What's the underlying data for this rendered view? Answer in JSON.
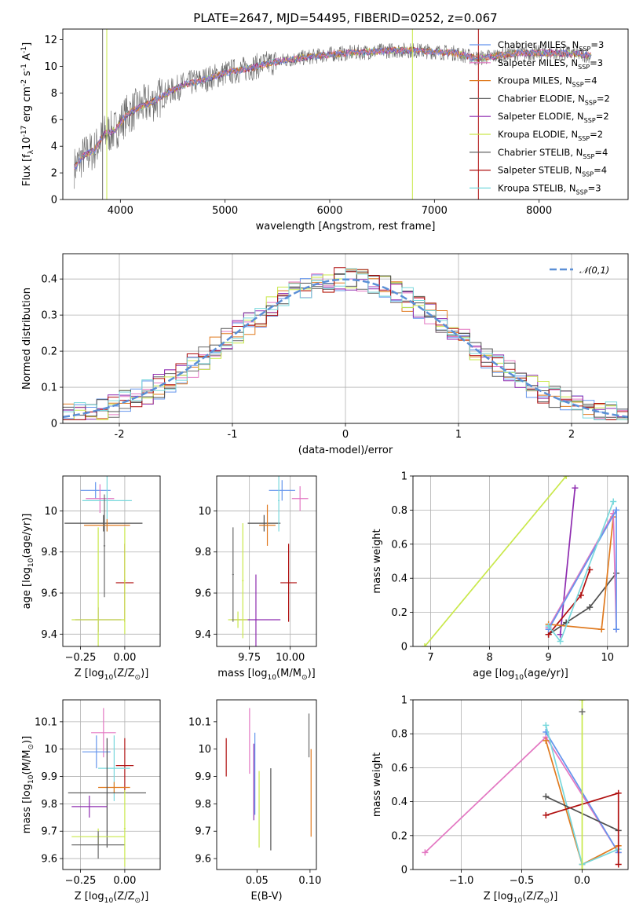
{
  "figure": {
    "title": "PLATE=2647, MJD=54495, FIBERID=0252, z=0.067"
  },
  "colors": {
    "Chabrier MILES": "#6495ed",
    "Salpeter MILES": "#e377c2",
    "Kroupa MILES": "#e07a1f",
    "Chabrier ELODIE": "#6a6a6a",
    "Salpeter ELODIE": "#8e2cb0",
    "Kroupa ELODIE": "#c9e84a",
    "Chabrier STELIB": "#505050",
    "Salpeter STELIB": "#b01010",
    "Kroupa STELIB": "#78d8dc",
    "gauss": "#5b8fd6"
  },
  "chart_data": [
    {
      "id": "spectrum",
      "type": "line",
      "title": "PLATE=2647, MJD=54495, FIBERID=0252, z=0.067",
      "xlabel": "wavelength [Angstrom, rest frame]",
      "ylabel": "Flux [f$_\\lambda$10$^{-17}$ erg cm$^{-2}$ s$^{-1}$ A$^{-1}$]",
      "xlim": [
        3450,
        8850
      ],
      "ylim": [
        0,
        12.8
      ],
      "xticks": [
        4000,
        5000,
        6000,
        7000,
        8000
      ],
      "yticks": [
        0,
        2,
        4,
        6,
        8,
        10,
        12
      ],
      "grid": false,
      "legend_position": "right",
      "legend": [
        "Chabrier MILES, N$_{SSP}$=3",
        "Salpeter MILES, N$_{SSP}$=3",
        "Kroupa MILES, N$_{SSP}$=4",
        "Chabrier ELODIE, N$_{SSP}$=2",
        "Salpeter ELODIE, N$_{SSP}$=2",
        "Kroupa ELODIE, N$_{SSP}$=2",
        "Chabrier STELIB, N$_{SSP}$=4",
        "Salpeter STELIB, N$_{SSP}$=4",
        "Kroupa STELIB, N$_{SSP}$=3"
      ],
      "continuum": [
        [
          3560,
          2.4
        ],
        [
          3650,
          3.3
        ],
        [
          3750,
          3.7
        ],
        [
          3850,
          4.9
        ],
        [
          3950,
          5.2
        ],
        [
          4050,
          6.3
        ],
        [
          4150,
          6.8
        ],
        [
          4300,
          7.3
        ],
        [
          4450,
          8.0
        ],
        [
          4600,
          8.6
        ],
        [
          4800,
          9.0
        ],
        [
          5000,
          9.5
        ],
        [
          5200,
          9.8
        ],
        [
          5400,
          10.2
        ],
        [
          5600,
          10.5
        ],
        [
          5800,
          10.7
        ],
        [
          6000,
          10.9
        ],
        [
          6200,
          11.0
        ],
        [
          6400,
          11.1
        ],
        [
          6600,
          11.2
        ],
        [
          6800,
          11.2
        ],
        [
          7000,
          11.1
        ],
        [
          7200,
          11.0
        ],
        [
          7400,
          10.6
        ],
        [
          7600,
          10.8
        ],
        [
          7800,
          11.0
        ],
        [
          8000,
          11.0
        ],
        [
          8200,
          11.0
        ],
        [
          8400,
          10.9
        ],
        [
          8500,
          10.8
        ]
      ],
      "spikes": [
        {
          "x": 3830,
          "color": "#6a6a6a"
        },
        {
          "x": 3870,
          "color": "#c9e84a"
        },
        {
          "x": 6790,
          "color": "#c9e84a"
        },
        {
          "x": 7420,
          "color": "#b01010"
        }
      ]
    },
    {
      "id": "residuals",
      "type": "histogram",
      "xlabel": "(data-model)/error",
      "ylabel": "Normed distribution",
      "xlim": [
        -2.5,
        2.5
      ],
      "ylim": [
        0,
        0.47
      ],
      "xticks": [
        -2,
        -1,
        0,
        1,
        2
      ],
      "yticks": [
        0.0,
        0.1,
        0.2,
        0.3,
        0.4
      ],
      "grid": true,
      "legend_position": "top-right",
      "legend": [
        "$\\mathcal{N}(0,1)$"
      ],
      "bin_width": 0.1
    },
    {
      "id": "age_vs_Z",
      "type": "scatter",
      "xlabel": "Z [log$_{10}$(Z/Z$_\\odot$)]",
      "ylabel": "age  [log$_{10}$(age/yr)]",
      "xlim": [
        -0.35,
        0.2
      ],
      "ylim": [
        9.34,
        10.17
      ],
      "xticks": [
        -0.25,
        0.0
      ],
      "xticklabels": [
        "−0.25",
        "0.00"
      ],
      "yticks": [
        9.4,
        9.6,
        9.8,
        10.0
      ],
      "grid": true,
      "points": [
        {
          "model": "Chabrier MILES",
          "x": -0.165,
          "y": 10.1,
          "xerr": 0.085,
          "yerr": 0.04
        },
        {
          "model": "Salpeter MILES",
          "x": -0.14,
          "y": 10.06,
          "xerr": 0.08,
          "yerr": 0.07
        },
        {
          "model": "Kroupa STELIB",
          "x": -0.1,
          "y": 10.05,
          "xerr": 0.14,
          "yerr": 0.15
        },
        {
          "model": "Chabrier STELIB",
          "x": -0.12,
          "y": 9.94,
          "xerr": 0.22,
          "yerr": 0.04
        },
        {
          "model": "Kroupa MILES",
          "x": -0.1,
          "y": 9.93,
          "xerr": 0.13,
          "yerr": 0.03
        },
        {
          "model": "Chabrier ELODIE",
          "x": -0.115,
          "y": 9.83,
          "xerr": 0.005,
          "yerr": 0.25
        },
        {
          "model": "Salpeter STELIB",
          "x": 0.0,
          "y": 9.65,
          "xerr": 0.05,
          "yerr": 0.19
        },
        {
          "model": "Salpeter ELODIE",
          "x": -0.15,
          "y": 9.47,
          "xerr": 0.13,
          "yerr": 0.06
        },
        {
          "model": "Kroupa ELODIE",
          "x": -0.15,
          "y": 9.47,
          "xerr": 0.15,
          "yerr": 0.45
        },
        {
          "model": "Kroupa ELODIE",
          "x": 0.0,
          "y": 9.66,
          "xerr": 0.005,
          "yerr": 0.26
        }
      ]
    },
    {
      "id": "age_vs_mass",
      "type": "scatter",
      "xlabel": "mass [log$_{10}$(M/M$_\\odot$)]",
      "ylabel": "",
      "xlim": [
        9.55,
        10.16
      ],
      "ylim": [
        9.34,
        10.17
      ],
      "xticks": [
        9.75,
        10.0
      ],
      "xticklabels": [
        "9.75",
        "10.00"
      ],
      "yticks": [
        9.4,
        9.6,
        9.8,
        10.0
      ],
      "grid": true,
      "points": [
        {
          "model": "Chabrier MILES",
          "x": 9.95,
          "y": 10.1,
          "xerr": 0.08,
          "yerr": 0.05
        },
        {
          "model": "Salpeter MILES",
          "x": 10.06,
          "y": 10.06,
          "xerr": 0.05,
          "yerr": 0.06
        },
        {
          "model": "Chabrier STELIB",
          "x": 9.84,
          "y": 9.94,
          "xerr": 0.1,
          "yerr": 0.04
        },
        {
          "model": "Kroupa MILES",
          "x": 9.86,
          "y": 9.93,
          "xerr": 0.05,
          "yerr": 0.1
        },
        {
          "model": "Kroupa STELIB",
          "x": 9.93,
          "y": 10.05,
          "xerr": 0.005,
          "yerr": 0.15
        },
        {
          "model": "Salpeter STELIB",
          "x": 9.99,
          "y": 9.65,
          "xerr": 0.05,
          "yerr": 0.19
        },
        {
          "model": "Salpeter ELODIE",
          "x": 9.79,
          "y": 9.47,
          "xerr": 0.15,
          "yerr": 0.22
        },
        {
          "model": "Kroupa ELODIE",
          "x": 9.68,
          "y": 9.47,
          "xerr": 0.06,
          "yerr": 0.04
        },
        {
          "model": "Chabrier ELODIE",
          "x": 9.65,
          "y": 9.69,
          "xerr": 0.005,
          "yerr": 0.23
        },
        {
          "model": "Kroupa ELODIE",
          "x": 9.71,
          "y": 9.66,
          "xerr": 0.005,
          "yerr": 0.28
        }
      ]
    },
    {
      "id": "weight_vs_age",
      "type": "line",
      "xlabel": "age  [log$_{10}$(age/yr)]",
      "ylabel": "mass weight",
      "xlim": [
        6.7,
        10.35
      ],
      "ylim": [
        0,
        1.0
      ],
      "xticks": [
        7,
        8,
        9,
        10
      ],
      "yticks": [
        0.0,
        0.2,
        0.4,
        0.6,
        0.8,
        1.0
      ],
      "grid": true,
      "series": [
        {
          "model": "Kroupa ELODIE",
          "x": [
            6.9,
            9.3
          ],
          "y": [
            0.0,
            1.0
          ]
        },
        {
          "model": "Salpeter ELODIE",
          "x": [
            9.2,
            9.45
          ],
          "y": [
            0.07,
            0.93
          ]
        },
        {
          "model": "Chabrier STELIB",
          "x": [
            9.0,
            9.3,
            9.7,
            10.15
          ],
          "y": [
            0.07,
            0.14,
            0.23,
            0.43
          ]
        },
        {
          "model": "Salpeter STELIB",
          "x": [
            9.0,
            9.55,
            9.7
          ],
          "y": [
            0.07,
            0.3,
            0.45
          ]
        },
        {
          "model": "Kroupa MILES",
          "x": [
            9.0,
            9.9,
            10.1
          ],
          "y": [
            0.13,
            0.1,
            0.76
          ]
        },
        {
          "model": "Salpeter MILES",
          "x": [
            9.0,
            10.1,
            10.15
          ],
          "y": [
            0.11,
            0.78,
            0.1
          ]
        },
        {
          "model": "Chabrier MILES",
          "x": [
            9.0,
            10.15,
            10.15
          ],
          "y": [
            0.1,
            0.8,
            0.1
          ]
        },
        {
          "model": "Kroupa STELIB",
          "x": [
            9.0,
            9.2,
            10.1
          ],
          "y": [
            0.12,
            0.03,
            0.85
          ]
        }
      ]
    },
    {
      "id": "mass_vs_Z",
      "type": "scatter",
      "xlabel": "Z [log$_{10}$(Z/Z$_\\odot$)]",
      "ylabel": "mass [log$_{10}$(M/M$_\\odot$)]",
      "xlim": [
        -0.35,
        0.2
      ],
      "ylim": [
        9.56,
        10.18
      ],
      "xticks": [
        -0.25,
        0.0
      ],
      "xticklabels": [
        "−0.25",
        "0.00"
      ],
      "yticks": [
        9.6,
        9.7,
        9.8,
        9.9,
        10.0,
        10.1
      ],
      "grid": true,
      "points": [
        {
          "model": "Salpeter MILES",
          "x": -0.12,
          "y": 10.06,
          "xerr": 0.07,
          "yerr": 0.09
        },
        {
          "model": "Chabrier MILES",
          "x": -0.16,
          "y": 9.99,
          "xerr": 0.08,
          "yerr": 0.06
        },
        {
          "model": "Salpeter STELIB",
          "x": 0.0,
          "y": 9.94,
          "xerr": 0.05,
          "yerr": 0.1
        },
        {
          "model": "Kroupa STELIB",
          "x": -0.06,
          "y": 9.93,
          "xerr": 0.09,
          "yerr": 0.12
        },
        {
          "model": "Kroupa MILES",
          "x": -0.06,
          "y": 9.86,
          "xerr": 0.09,
          "yerr": 0.02
        },
        {
          "model": "Chabrier STELIB",
          "x": -0.1,
          "y": 9.84,
          "xerr": 0.22,
          "yerr": 0.2
        },
        {
          "model": "Salpeter ELODIE",
          "x": -0.2,
          "y": 9.79,
          "xerr": 0.1,
          "yerr": 0.04
        },
        {
          "model": "Kroupa ELODIE",
          "x": -0.15,
          "y": 9.68,
          "xerr": 0.15,
          "yerr": 0.03
        },
        {
          "model": "Chabrier ELODIE",
          "x": -0.15,
          "y": 9.65,
          "xerr": 0.15,
          "yerr": 0.05
        },
        {
          "model": "Kroupa ELODIE",
          "x": 0.0,
          "y": 9.71,
          "xerr": 0.005,
          "yerr": 0.14
        }
      ]
    },
    {
      "id": "mass_vs_ebv",
      "type": "scatter",
      "xlabel": "E(B-V)",
      "ylabel": "",
      "xlim": [
        0.012,
        0.106
      ],
      "ylim": [
        9.56,
        10.18
      ],
      "xticks": [
        0.05,
        0.1
      ],
      "xticklabels": [
        "0.05",
        "0.10"
      ],
      "yticks": [
        9.6,
        9.7,
        9.8,
        9.9,
        10.0,
        10.1
      ],
      "grid": false,
      "points": [
        {
          "model": "Salpeter STELIB",
          "x": 0.021,
          "y": 9.97,
          "yerr": 0.07
        },
        {
          "model": "Salpeter MILES",
          "x": 0.043,
          "y": 10.03,
          "yerr": 0.12
        },
        {
          "model": "Salpeter ELODIE",
          "x": 0.047,
          "y": 9.88,
          "yerr": 0.14
        },
        {
          "model": "Chabrier MILES",
          "x": 0.048,
          "y": 9.91,
          "yerr": 0.15
        },
        {
          "model": "Kroupa ELODIE",
          "x": 0.052,
          "y": 9.78,
          "yerr": 0.14
        },
        {
          "model": "Chabrier STELIB",
          "x": 0.063,
          "y": 9.78,
          "yerr": 0.15
        },
        {
          "model": "Kroupa MILES",
          "x": 0.101,
          "y": 9.84,
          "yerr": 0.16
        },
        {
          "model": "Chabrier ELODIE",
          "x": 0.099,
          "y": 10.05,
          "yerr": 0.08
        }
      ]
    },
    {
      "id": "weight_vs_Z",
      "type": "line",
      "xlabel": "Z [log$_{10}$(Z/Z$_\\odot$)]",
      "ylabel": "mass weight",
      "xlim": [
        -1.4,
        0.38
      ],
      "ylim": [
        0,
        1.0
      ],
      "xticks": [
        -1.0,
        -0.5,
        0.0
      ],
      "xticklabels": [
        "−1.0",
        "−0.5",
        "0.0"
      ],
      "yticks": [
        0.0,
        0.2,
        0.4,
        0.6,
        0.8,
        1.0
      ],
      "grid": true,
      "series": [
        {
          "model": "Salpeter MILES",
          "x": [
            -1.3,
            -0.3,
            0.3
          ],
          "y": [
            0.1,
            0.78,
            0.1
          ]
        },
        {
          "model": "Chabrier MILES",
          "x": [
            -0.3,
            0.3
          ],
          "y": [
            0.81,
            0.1
          ]
        },
        {
          "model": "Kroupa MILES",
          "x": [
            -0.3,
            0.0,
            0.3
          ],
          "y": [
            0.76,
            0.03,
            0.14
          ]
        },
        {
          "model": "Kroupa STELIB",
          "x": [
            -0.3,
            0.0,
            0.3
          ],
          "y": [
            0.85,
            0.03,
            0.12
          ]
        },
        {
          "model": "Chabrier STELIB",
          "x": [
            -0.3,
            0.3
          ],
          "y": [
            0.43,
            0.23
          ]
        },
        {
          "model": "Salpeter STELIB",
          "x": [
            -0.3,
            0.3,
            0.3
          ],
          "y": [
            0.32,
            0.45,
            0.03
          ]
        },
        {
          "model": "Kroupa ELODIE",
          "x": [
            0.0,
            0.0
          ],
          "y": [
            0.0,
            1.0
          ]
        },
        {
          "model": "Chabrier ELODIE",
          "x": [
            0.0
          ],
          "y": [
            0.93
          ]
        }
      ]
    }
  ]
}
